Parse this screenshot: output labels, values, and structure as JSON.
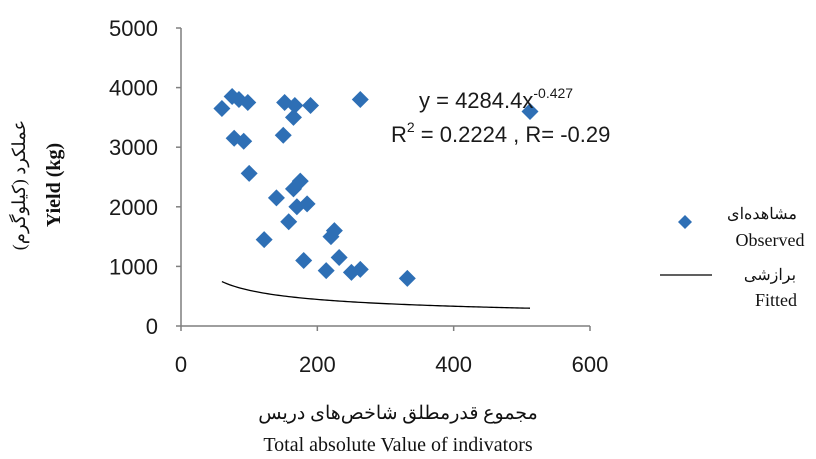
{
  "chart_data": {
    "type": "scatter",
    "xlabel_fa": "مجموع قدرمطلق شاخص‌های دریس",
    "xlabel_en": "Total absolute Value of indivators",
    "ylabel_fa": "عملکرد (کیلوگرم)",
    "ylabel_en": "Yield (kg)",
    "xlim": [
      0,
      600
    ],
    "ylim": [
      0,
      5000
    ],
    "xticks": [
      "0",
      "200",
      "400",
      "600"
    ],
    "yticks": [
      "0",
      "1000",
      "2000",
      "3000",
      "4000",
      "5000"
    ],
    "grid": false,
    "legend_position": "right",
    "equation": {
      "lhs": "y = 4284.4x",
      "exp": "-0.427",
      "r2_lhs": "R",
      "r2_sup": "2",
      "r2_rhs": " = 0.2224 , R= -0.29"
    },
    "series": [
      {
        "name": "Observed",
        "name_fa": "مشاهده‌ای",
        "kind": "scatter",
        "marker": "diamond",
        "color": "#2e6fb5",
        "points": [
          [
            60,
            3650
          ],
          [
            75,
            3850
          ],
          [
            85,
            3800
          ],
          [
            98,
            3750
          ],
          [
            78,
            3150
          ],
          [
            92,
            3100
          ],
          [
            100,
            2560
          ],
          [
            152,
            3750
          ],
          [
            167,
            3700
          ],
          [
            190,
            3700
          ],
          [
            263,
            3800
          ],
          [
            512,
            3600
          ],
          [
            150,
            3200
          ],
          [
            165,
            3500
          ],
          [
            165,
            2300
          ],
          [
            175,
            2430
          ],
          [
            170,
            2000
          ],
          [
            185,
            2050
          ],
          [
            140,
            2150
          ],
          [
            158,
            1750
          ],
          [
            122,
            1450
          ],
          [
            220,
            1500
          ],
          [
            225,
            1600
          ],
          [
            180,
            1100
          ],
          [
            232,
            1150
          ],
          [
            213,
            930
          ],
          [
            250,
            900
          ],
          [
            263,
            950
          ],
          [
            332,
            800
          ]
        ]
      },
      {
        "name": "Fitted",
        "name_fa": "برازشی",
        "kind": "power-fit",
        "color": "#000000",
        "a": 4284.4,
        "b": -0.427,
        "x_start": 60,
        "x_end": 512
      }
    ]
  }
}
